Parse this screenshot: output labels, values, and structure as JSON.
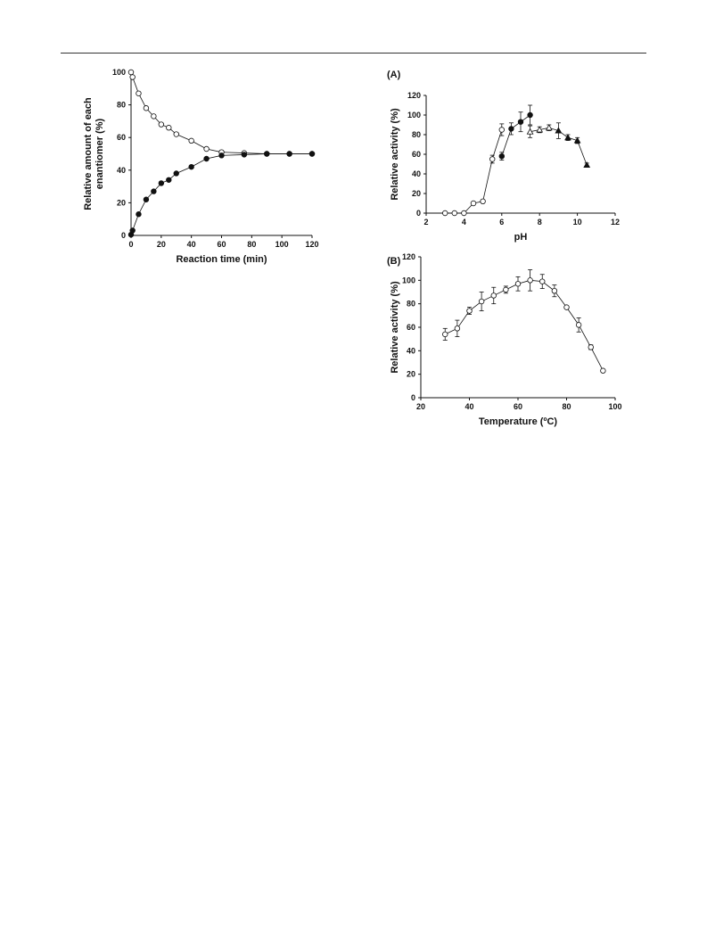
{
  "page": {
    "header_rule": true
  },
  "chart_data": [
    {
      "id": "time",
      "type": "scatter",
      "panel_label": "",
      "xlabel": "Reaction time (min)",
      "ylabel": "Relative amount of each enantiomer (%)",
      "ylabel_lines": [
        "Relative amount of each",
        "enantiomer (%)"
      ],
      "xlim": [
        0,
        120
      ],
      "ylim": [
        0,
        100
      ],
      "xticks": [
        0,
        20,
        40,
        60,
        80,
        100,
        120
      ],
      "yticks": [
        0,
        20,
        40,
        60,
        80,
        100
      ],
      "grid": false,
      "series": [
        {
          "marker": "open-circle",
          "color": "#000000",
          "x": [
            0,
            1,
            5,
            10,
            15,
            20,
            25,
            30,
            40,
            50,
            60,
            75,
            90,
            105,
            120
          ],
          "y": [
            100,
            97,
            87,
            78,
            73,
            68,
            66,
            62,
            58,
            53,
            51,
            50.5,
            50,
            50,
            50
          ]
        },
        {
          "marker": "filled-circle",
          "color": "#000000",
          "x": [
            0,
            1,
            5,
            10,
            15,
            20,
            25,
            30,
            40,
            50,
            60,
            75,
            90,
            105,
            120
          ],
          "y": [
            0.5,
            3,
            13,
            22,
            27,
            32,
            34,
            38,
            42,
            47,
            49,
            49.5,
            50,
            50,
            50
          ]
        }
      ]
    },
    {
      "id": "ph",
      "type": "scatter",
      "panel_label": "(A)",
      "xlabel": "pH",
      "ylabel": "Relative activity (%)",
      "ylabel_lines": [
        "Relative activity (%)"
      ],
      "xlim": [
        2,
        12
      ],
      "ylim": [
        0,
        120
      ],
      "xticks": [
        2,
        4,
        6,
        8,
        10,
        12
      ],
      "yticks": [
        0,
        20,
        40,
        60,
        80,
        100,
        120
      ],
      "grid": false,
      "series": [
        {
          "marker": "open-circle",
          "color": "#000000",
          "x": [
            3,
            3.5,
            4,
            4.5,
            5,
            5.5,
            6
          ],
          "y": [
            0,
            0,
            0,
            10,
            12,
            55,
            85
          ],
          "err": [
            0,
            0,
            0,
            0,
            0,
            4,
            6
          ]
        },
        {
          "marker": "filled-circle",
          "color": "#000000",
          "x": [
            6,
            6.5,
            7,
            7.5
          ],
          "y": [
            58,
            86,
            93,
            100
          ],
          "err": [
            4,
            6,
            10,
            10
          ]
        },
        {
          "marker": "open-triangle",
          "color": "#000000",
          "x": [
            7.5,
            8,
            8.5,
            9
          ],
          "y": [
            83,
            85,
            87,
            84
          ],
          "err": [
            6,
            3,
            3,
            8
          ]
        },
        {
          "marker": "filled-triangle",
          "color": "#000000",
          "x": [
            9,
            9.5,
            10,
            10.5
          ],
          "y": [
            84,
            77,
            74,
            49
          ],
          "err": [
            0,
            3,
            3,
            2
          ]
        }
      ]
    },
    {
      "id": "temp",
      "type": "scatter",
      "panel_label": "(B)",
      "xlabel": "Temperature (ºC)",
      "ylabel": "Relative activity (%)",
      "ylabel_lines": [
        "Relative activity (%)"
      ],
      "xlim": [
        20,
        100
      ],
      "ylim": [
        0,
        120
      ],
      "xticks": [
        20,
        40,
        60,
        80,
        100
      ],
      "yticks": [
        0,
        20,
        40,
        60,
        80,
        100,
        120
      ],
      "grid": false,
      "series": [
        {
          "marker": "open-circle",
          "color": "#000000",
          "x": [
            30,
            35,
            40,
            45,
            50,
            55,
            60,
            65,
            70,
            75,
            80,
            85,
            90,
            95
          ],
          "y": [
            54,
            59,
            74,
            82,
            87,
            92,
            97,
            100,
            99,
            91,
            77,
            62,
            43,
            23
          ],
          "err": [
            5,
            7,
            3,
            8,
            7,
            3,
            6,
            9,
            6,
            5,
            0,
            6,
            2,
            0
          ]
        }
      ]
    }
  ]
}
